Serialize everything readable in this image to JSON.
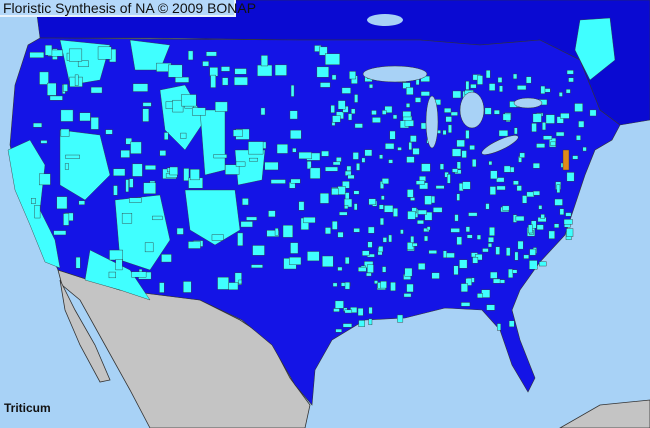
{
  "header": {
    "title": "Floristic Synthesis of NA © 2009 BONAP"
  },
  "map": {
    "taxon_label": "Triticum",
    "colors": {
      "ocean": "#a8d2f6",
      "us_counties": "#1414e6",
      "canada": "#0a0ad2",
      "present_county": "#40ffff",
      "mexico": "#c4c4c4",
      "highlight": "#e08a1a"
    }
  }
}
